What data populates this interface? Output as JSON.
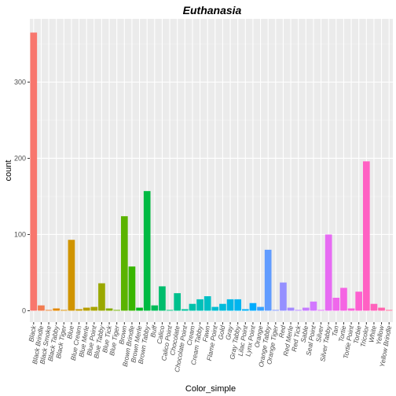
{
  "chart_data": {
    "type": "bar",
    "title": "Euthanasia",
    "xlabel": "Color_simple",
    "ylabel": "count",
    "ylim": [
      -15,
      383
    ],
    "yticks": [
      0,
      100,
      200,
      300
    ],
    "grid": true,
    "categories": [
      "Black",
      "Black Brindle",
      "Black Smoke",
      "Black Tabby",
      "Black Tiger",
      "Blue",
      "Blue Cream",
      "Blue Merle",
      "Blue Point",
      "Blue Tabby",
      "Blue Tick",
      "Blue Tiger",
      "Brown",
      "Brown Brindle",
      "Brown Merle",
      "Brown Tabby",
      "Buff",
      "Calico",
      "Calico Point",
      "Chocolate",
      "Chocolate Point",
      "Cream",
      "Cream Tabby",
      "Fawn",
      "Flame Point",
      "Gold",
      "Gray",
      "Gray Tabby",
      "Lilac Point",
      "Lynx Point",
      "Orange",
      "Orange Tabby",
      "Orange Tiger",
      "Red",
      "Red Merle",
      "Red Tick",
      "Sable",
      "Seal Point",
      "Silver",
      "Silver Tabby",
      "Tan",
      "Tortie",
      "Tortie Point",
      "Torbie",
      "Tricolor",
      "White",
      "Yellow",
      "Yellow Brindle"
    ],
    "values": [
      365,
      7,
      1,
      3,
      1,
      93,
      2,
      4,
      5,
      36,
      3,
      1,
      124,
      58,
      4,
      157,
      7,
      32,
      1,
      23,
      2,
      9,
      15,
      19,
      5,
      9,
      15,
      15,
      2,
      10,
      5,
      80,
      1,
      37,
      4,
      1,
      4,
      12,
      1,
      100,
      17,
      30,
      3,
      25,
      196,
      9,
      4,
      1
    ],
    "colors": [
      "#F8766D",
      "#F27D52",
      "#EA8331",
      "#E38900",
      "#DA8F00",
      "#D09400",
      "#C49A00",
      "#B79F00",
      "#A9A400",
      "#9AA800",
      "#87AC00",
      "#72B000",
      "#5BB300",
      "#39B600",
      "#00B81F",
      "#00BA42",
      "#00BC59",
      "#00BD6D",
      "#00BF7D",
      "#00C08D",
      "#00C19C",
      "#00C1AA",
      "#00C0B8",
      "#00BFC4",
      "#00BDD0",
      "#00BBDB",
      "#00B8E5",
      "#00B4EF",
      "#00B0F6",
      "#00ABFD",
      "#35A2FF",
      "#619CFF",
      "#7F96FF",
      "#9590FF",
      "#A58AFF",
      "#B385FF",
      "#C77CFF",
      "#D277FF",
      "#DD71FA",
      "#E76BF3",
      "#EF67EB",
      "#F564E3",
      "#FA62DB",
      "#FD61D1",
      "#FF61C3",
      "#FF62BC",
      "#FF65AE",
      "#FF6A98"
    ]
  }
}
